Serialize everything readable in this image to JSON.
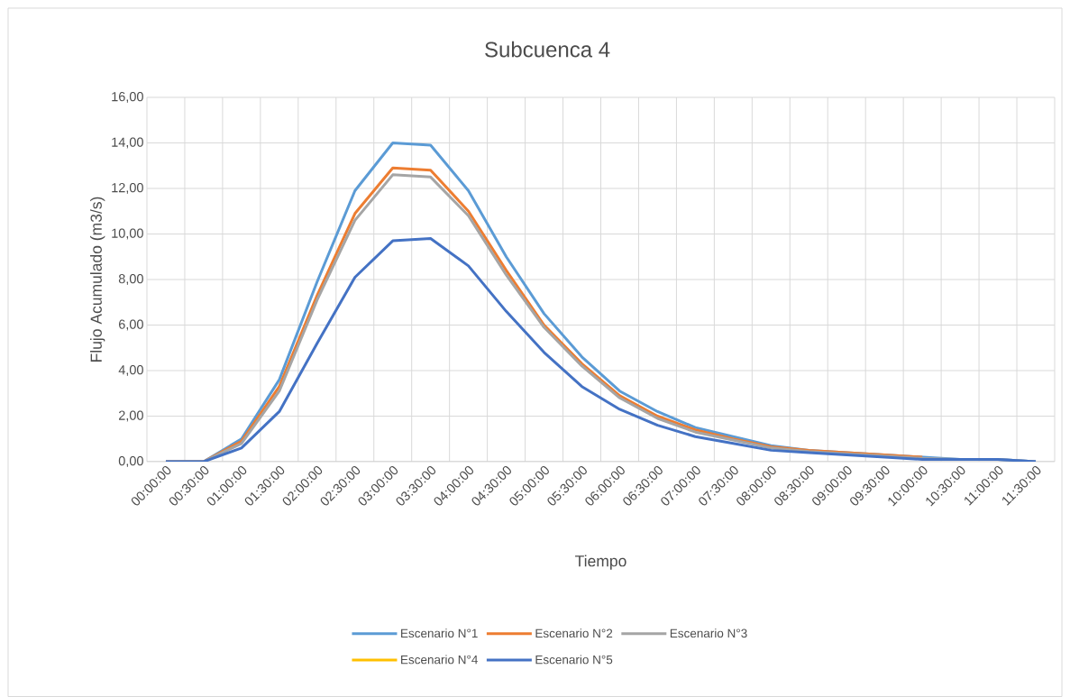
{
  "chart_data": {
    "type": "line",
    "title": "Subcuenca 4",
    "xlabel": "Tiempo",
    "ylabel": "Flujo Acumulado (m3/s)",
    "categories": [
      "00:00:00",
      "00:30:00",
      "01:00:00",
      "01:30:00",
      "02:00:00",
      "02:30:00",
      "03:00:00",
      "03:30:00",
      "04:00:00",
      "04:30:00",
      "05:00:00",
      "05:30:00",
      "06:00:00",
      "06:30:00",
      "07:00:00",
      "07:30:00",
      "08:00:00",
      "08:30:00",
      "09:00:00",
      "09:30:00",
      "10:00:00",
      "10:30:00",
      "11:00:00",
      "11:30:00"
    ],
    "series": [
      {
        "name": "Escenario N°1",
        "color": "#5b9bd5",
        "values": [
          0,
          0,
          1.0,
          3.6,
          7.9,
          11.9,
          14.0,
          13.9,
          11.9,
          9.0,
          6.5,
          4.6,
          3.1,
          2.2,
          1.5,
          1.1,
          0.7,
          0.5,
          0.4,
          0.3,
          0.2,
          0.1,
          0.1,
          0
        ]
      },
      {
        "name": "Escenario N°2",
        "color": "#ed7d31",
        "values": [
          0,
          0,
          0.9,
          3.3,
          7.3,
          10.9,
          12.9,
          12.8,
          11.0,
          8.4,
          6.0,
          4.3,
          2.9,
          2.0,
          1.4,
          1.0,
          0.65,
          0.5,
          0.4,
          0.3,
          0.2,
          null,
          null,
          null
        ]
      },
      {
        "name": "Escenario N°3",
        "color": "#a5a5a5",
        "values": [
          0,
          0,
          0.8,
          3.1,
          7.1,
          10.6,
          12.6,
          12.5,
          10.8,
          8.2,
          5.9,
          4.2,
          2.8,
          1.9,
          1.3,
          0.95,
          0.6,
          0.45,
          0.35,
          0.25,
          0.15,
          0.1,
          0.1,
          0
        ]
      },
      {
        "name": "Escenario N°4",
        "color": "#ffc000",
        "values": [
          null,
          null,
          null,
          null,
          null,
          null,
          null,
          null,
          null,
          null,
          null,
          null,
          null,
          null,
          null,
          null,
          null,
          null,
          null,
          null,
          null,
          null,
          null,
          null
        ]
      },
      {
        "name": "Escenario N°5",
        "color": "#4472c4",
        "values": [
          0,
          0,
          0.6,
          2.2,
          5.2,
          8.1,
          9.7,
          9.8,
          8.6,
          6.6,
          4.8,
          3.3,
          2.3,
          1.6,
          1.1,
          0.8,
          0.5,
          0.4,
          0.3,
          0.2,
          0.1,
          0.1,
          0.1,
          0
        ]
      }
    ],
    "ylim": [
      0,
      16
    ],
    "yticks": [
      {
        "value": 0,
        "label": "0,00"
      },
      {
        "value": 2,
        "label": "2,00"
      },
      {
        "value": 4,
        "label": "4,00"
      },
      {
        "value": 6,
        "label": "6,00"
      },
      {
        "value": 8,
        "label": "8,00"
      },
      {
        "value": 10,
        "label": "10,00"
      },
      {
        "value": 12,
        "label": "12,00"
      },
      {
        "value": 14,
        "label": "14,00"
      },
      {
        "value": 16,
        "label": "16,00"
      }
    ],
    "grid": true,
    "legend": "bottom",
    "marker": "none",
    "line_style": "solid"
  }
}
